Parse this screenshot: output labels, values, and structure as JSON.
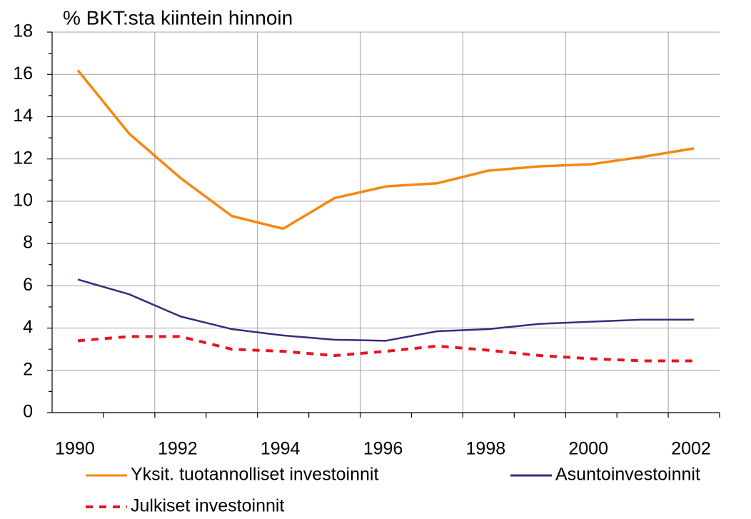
{
  "chart_data": {
    "type": "line",
    "title": "% BKT:sta kiintein hinnoin",
    "categories": [
      "1990",
      null,
      "1992",
      null,
      "1994",
      null,
      "1996",
      null,
      "1998",
      null,
      "2000",
      null,
      "2002"
    ],
    "series": [
      {
        "name": "Yksit. tuotannolliset investoinnit",
        "color": "#f7870f",
        "dash": "solid",
        "values": [
          16.2,
          13.2,
          11.1,
          9.3,
          8.7,
          10.15,
          10.7,
          10.85,
          11.45,
          11.65,
          11.75,
          12.1,
          12.5
        ]
      },
      {
        "name": "Asuntoinvestoinnit",
        "color": "#3b2a7a",
        "dash": "solid",
        "values": [
          6.3,
          5.6,
          4.55,
          3.95,
          3.65,
          3.45,
          3.4,
          3.85,
          3.95,
          4.2,
          4.3,
          4.4,
          4.4
        ]
      },
      {
        "name": "Julkiset investoinnit",
        "color": "#e8141e",
        "dash": "dashed",
        "values": [
          3.4,
          3.6,
          3.6,
          3.0,
          2.9,
          2.7,
          2.9,
          3.15,
          2.95,
          2.7,
          2.55,
          2.45,
          2.45
        ]
      }
    ],
    "ylim": [
      0,
      18
    ],
    "yticks": [
      0,
      2,
      4,
      6,
      8,
      10,
      12,
      14,
      16,
      18
    ],
    "grid": true
  }
}
